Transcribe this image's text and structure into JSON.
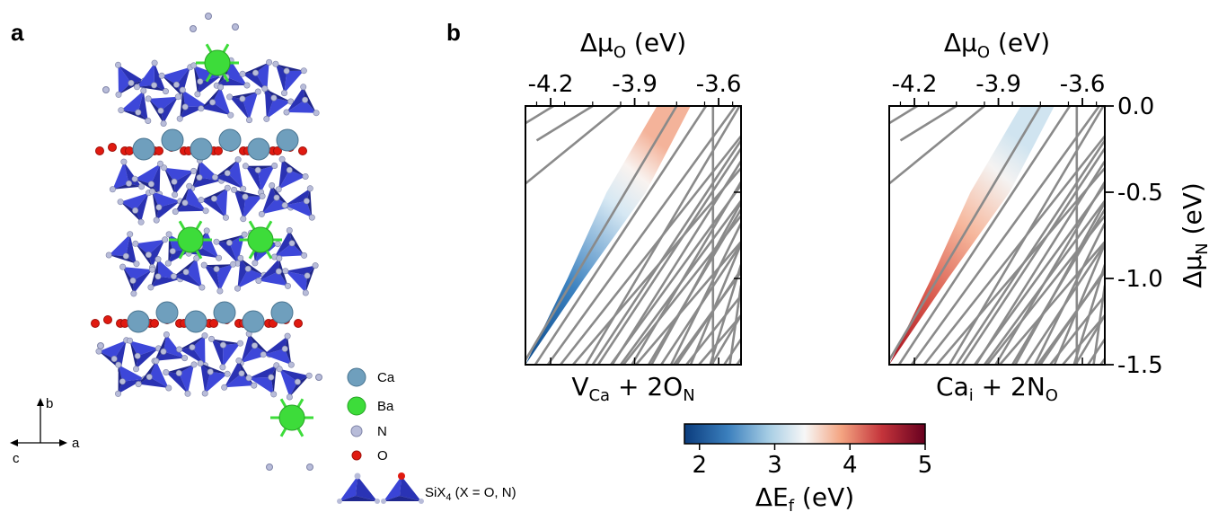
{
  "panels": {
    "a": "a",
    "b": "b"
  },
  "structure": {
    "axes": {
      "b": "b",
      "a": "a",
      "c": "c"
    },
    "legend": [
      {
        "label": "Ca",
        "color": "#6f9fbd"
      },
      {
        "label": "Ba",
        "color": "#3ddc3a"
      },
      {
        "label": "N",
        "color": "#b8bcd9"
      },
      {
        "label": "O",
        "color": "#e01a10"
      }
    ],
    "siX4_label": "SiX",
    "siX4_sub": "4",
    "siX4_rest": " (X = O, N)",
    "colors": {
      "ca": "#6f9fbd",
      "ba": "#3ddc3a",
      "n": "#b8bcd9",
      "o": "#e01a10",
      "tetra": "#2f38c9"
    }
  },
  "chart_data": {
    "type": "heatmap",
    "x_axis": {
      "label_main": "Δμ",
      "label_sub": "O",
      "label_unit": " (eV)",
      "ticks": [
        "-4.2",
        "-3.9",
        "-3.6"
      ],
      "tick_values": [
        -4.2,
        -3.9,
        -3.6
      ],
      "range": [
        -4.29,
        -3.52
      ],
      "position": "top"
    },
    "y_axis": {
      "label_main": "Δμ",
      "label_sub": "N",
      "label_unit": " (eV)",
      "ticks": [
        "0.0",
        "-0.5",
        "-1.0",
        "-1.5"
      ],
      "tick_values": [
        0.0,
        -0.5,
        -1.0,
        -1.5
      ],
      "range": [
        -1.5,
        0.0
      ],
      "position": "right"
    },
    "subplots": [
      {
        "name_main": "V",
        "name_sub1": "Ca",
        "name_mid": " + 2O",
        "name_sub2": "N",
        "stable_region": [
          [
            -4.29,
            -1.5
          ],
          [
            -4.08,
            -1.0
          ],
          [
            -3.86,
            -0.5
          ],
          [
            -3.7,
            0.0
          ],
          [
            -3.82,
            0.0
          ],
          [
            -4.0,
            -0.5
          ],
          [
            -4.14,
            -1.0
          ],
          [
            -4.29,
            -1.5
          ]
        ],
        "color_range": [
          1.8,
          3.8
        ]
      },
      {
        "name_main": "Ca",
        "name_sub1": "i",
        "name_mid": " + 2N",
        "name_sub2": "O",
        "stable_region": [
          [
            -4.29,
            -1.5
          ],
          [
            -4.08,
            -1.0
          ],
          [
            -3.86,
            -0.5
          ],
          [
            -3.7,
            0.0
          ],
          [
            -3.82,
            0.0
          ],
          [
            -4.0,
            -0.5
          ],
          [
            -4.14,
            -1.0
          ],
          [
            -4.29,
            -1.5
          ]
        ],
        "color_range": [
          2.2,
          5.0
        ]
      }
    ],
    "colorbar": {
      "label_main": "ΔE",
      "label_sub": "f",
      "label_unit": " (eV)",
      "range": [
        1.8,
        5.0
      ],
      "ticks": [
        "2",
        "3",
        "4",
        "5"
      ],
      "tick_values": [
        2,
        3,
        4,
        5
      ],
      "colors": [
        "#0b3c7d",
        "#3b7fbd",
        "#a6cde4",
        "#f7f7f7",
        "#f4a582",
        "#c4343b",
        "#67001f"
      ]
    },
    "grid": false
  }
}
